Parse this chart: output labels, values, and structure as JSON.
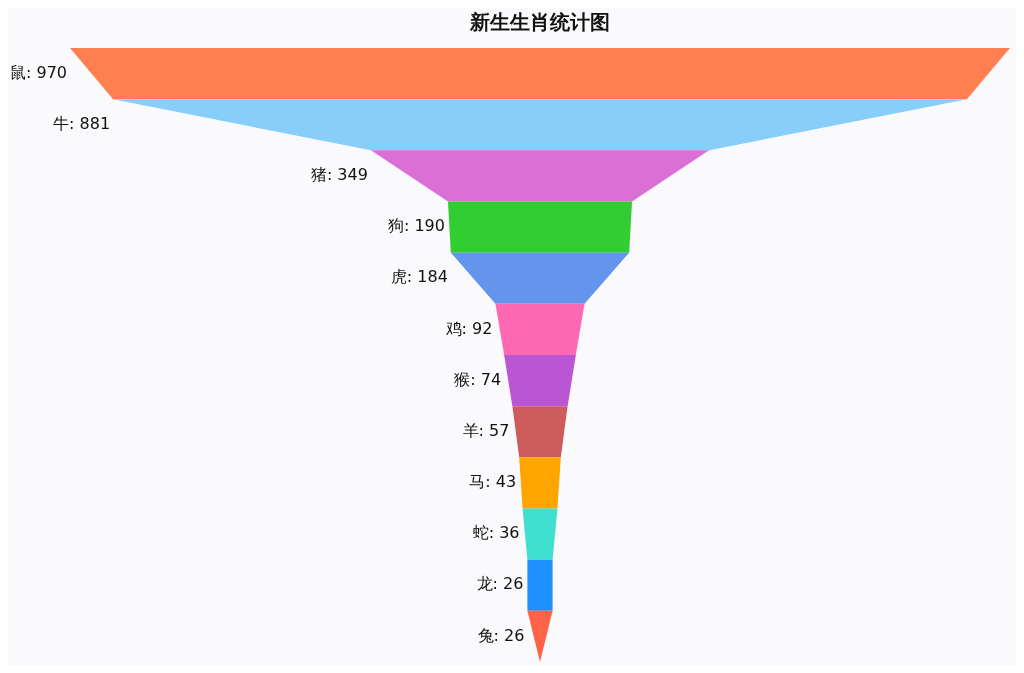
{
  "chart_data": {
    "type": "other",
    "title": "新生生肖统计图",
    "values": [
      970,
      881,
      349,
      190,
      184,
      92,
      74,
      57,
      43,
      36,
      26,
      26
    ],
    "colors": [
      "#ff7f50",
      "#87cefa",
      "#da70d6",
      "#32cd32",
      "#6495ed",
      "#ff69b4",
      "#ba55d3",
      "#cd5c5c",
      "#ffa500",
      "#40e0d0",
      "#1e90ff",
      "#ff6347"
    ],
    "value_labels": [
      "鼠: 970",
      "牛: 881",
      "猪: 349",
      "狗: 190",
      "虎: 184",
      "鸡: 92",
      "猴: 74",
      "羊: 57",
      "马: 43",
      "蛇: 36",
      "龙: 26",
      "兔: 26"
    ]
  }
}
